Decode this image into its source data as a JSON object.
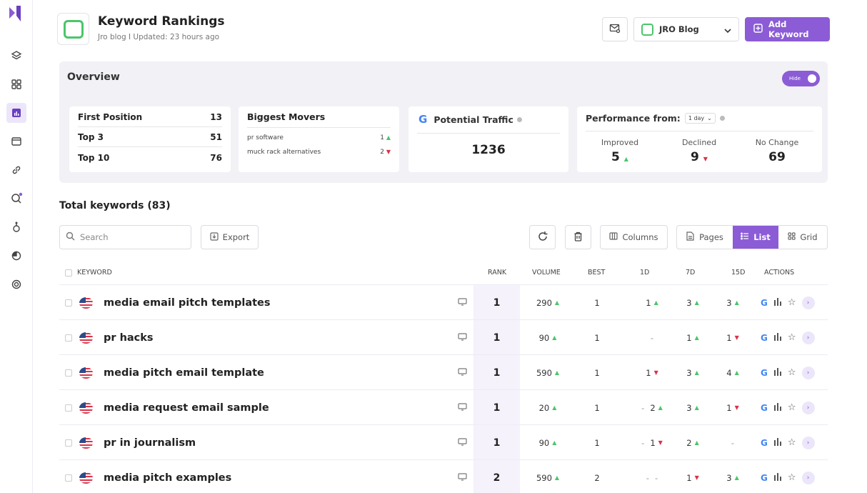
{
  "header": {
    "title": "Keyword Rankings",
    "subtitle": "Jro blog I Updated: 23 hours ago",
    "project_label": "JRO Blog",
    "add_keyword_label": "Add Keyword"
  },
  "overview": {
    "title": "Overview",
    "toggle_label": "Hide",
    "first_position": [
      {
        "label": "First Position",
        "value": "13"
      },
      {
        "label": "Top 3",
        "value": "51"
      },
      {
        "label": "Top 10",
        "value": "76"
      }
    ],
    "biggest_movers": {
      "title": "Biggest Movers",
      "items": [
        {
          "label": "pr software",
          "value": "1",
          "dir": "up"
        },
        {
          "label": "muck rack alternatives",
          "value": "2",
          "dir": "down"
        }
      ]
    },
    "potential_traffic": {
      "label": "Potential Traffic",
      "value": "1236"
    },
    "performance": {
      "label": "Performance from:",
      "period": "1 day",
      "improved_label": "Improved",
      "improved_value": "5",
      "declined_label": "Declined",
      "declined_value": "9",
      "nochange_label": "No Change",
      "nochange_value": "69"
    }
  },
  "keywords": {
    "title": "Total keywords (83)",
    "search_placeholder": "Search",
    "export_label": "Export",
    "columns_label": "Columns",
    "pages_label": "Pages",
    "list_label": "List",
    "grid_label": "Grid"
  },
  "table": {
    "headers": {
      "keyword": "KEYWORD",
      "rank": "RANK",
      "volume": "VOLUME",
      "best": "BEST",
      "d1": "1D",
      "d7": "7D",
      "d15": "15D",
      "actions": "ACTIONS"
    },
    "rows": [
      {
        "keyword": "media email pitch templates",
        "rank": "1",
        "volume": "290",
        "volume_dir": "up",
        "best": "1",
        "d1_pre": "",
        "d1": "1",
        "d1_dir": "up",
        "d7": "3",
        "d7_dir": "up",
        "d15": "3",
        "d15_dir": "up"
      },
      {
        "keyword": "pr hacks",
        "rank": "1",
        "volume": "90",
        "volume_dir": "up",
        "best": "1",
        "d1_pre": "",
        "d1": "-",
        "d1_dir": "",
        "d7": "1",
        "d7_dir": "up",
        "d15": "1",
        "d15_dir": "down"
      },
      {
        "keyword": "media pitch email template",
        "rank": "1",
        "volume": "590",
        "volume_dir": "up",
        "best": "1",
        "d1_pre": "",
        "d1": "1",
        "d1_dir": "down",
        "d7": "3",
        "d7_dir": "up",
        "d15": "4",
        "d15_dir": "up"
      },
      {
        "keyword": "media request email sample",
        "rank": "1",
        "volume": "20",
        "volume_dir": "up",
        "best": "1",
        "d1_pre": "-",
        "d1": "2",
        "d1_dir": "up",
        "d7": "3",
        "d7_dir": "up",
        "d15": "1",
        "d15_dir": "down"
      },
      {
        "keyword": "pr in journalism",
        "rank": "1",
        "volume": "90",
        "volume_dir": "up",
        "best": "1",
        "d1_pre": "-",
        "d1": "1",
        "d1_dir": "down",
        "d7": "2",
        "d7_dir": "up",
        "d15": "-",
        "d15_dir": ""
      },
      {
        "keyword": "media pitch examples",
        "rank": "2",
        "volume": "590",
        "volume_dir": "up",
        "best": "2",
        "d1_pre": "-",
        "d1": "-",
        "d1_dir": "",
        "d7": "1",
        "d7_dir": "down",
        "d15": "3",
        "d15_dir": "up"
      }
    ]
  },
  "colors": {
    "accent": "#8b5cd6",
    "up": "#4cc56b",
    "down": "#d9334a"
  }
}
